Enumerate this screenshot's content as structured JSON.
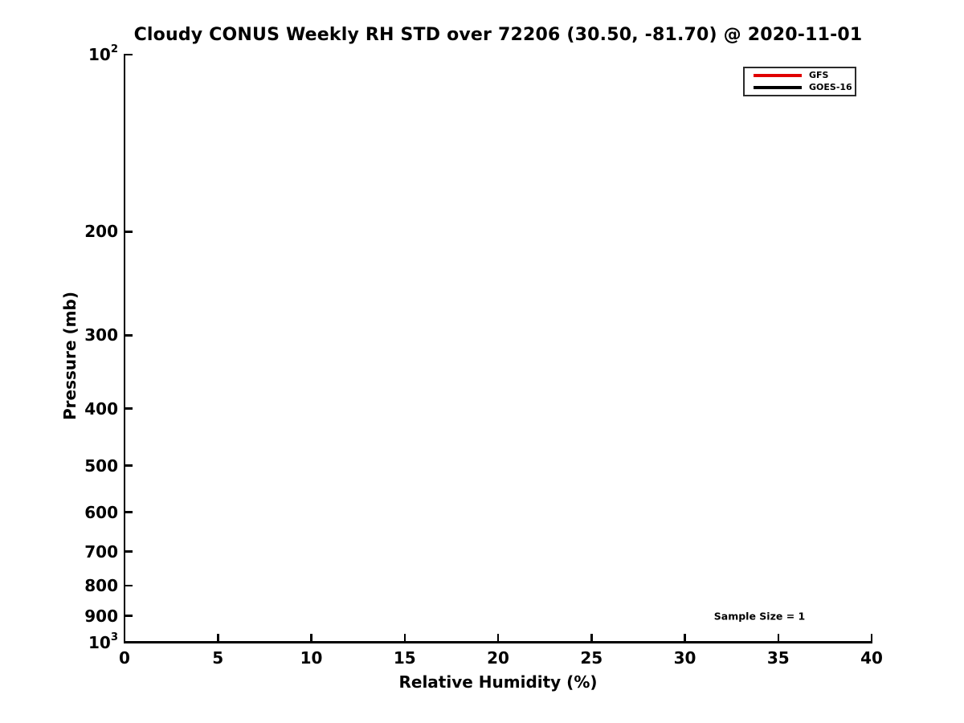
{
  "chart_data": {
    "type": "line",
    "title": "Cloudy CONUS Weekly RH STD over 72206 (30.50, -81.70) @ 2020-11-01",
    "xlabel": "Relative Humidity (%)",
    "ylabel": "Pressure (mb)",
    "xlim": [
      0,
      40
    ],
    "ylim": [
      100,
      1000
    ],
    "yscale": "log",
    "y_axis_direction": "increasing-downward",
    "grid": false,
    "x_ticks": [
      {
        "value": 0,
        "label": "0"
      },
      {
        "value": 5,
        "label": "5"
      },
      {
        "value": 10,
        "label": "10"
      },
      {
        "value": 15,
        "label": "15"
      },
      {
        "value": 20,
        "label": "20"
      },
      {
        "value": 25,
        "label": "25"
      },
      {
        "value": 30,
        "label": "30"
      },
      {
        "value": 35,
        "label": "35"
      },
      {
        "value": 40,
        "label": "40"
      }
    ],
    "y_ticks": [
      {
        "value": 100,
        "label": "10^2"
      },
      {
        "value": 200,
        "label": "200"
      },
      {
        "value": 300,
        "label": "300"
      },
      {
        "value": 400,
        "label": "400"
      },
      {
        "value": 500,
        "label": "500"
      },
      {
        "value": 600,
        "label": "600"
      },
      {
        "value": 700,
        "label": "700"
      },
      {
        "value": 800,
        "label": "800"
      },
      {
        "value": 900,
        "label": "900"
      },
      {
        "value": 1000,
        "label": "10^3"
      }
    ],
    "legend": {
      "position": "upper-right",
      "border_color": "#2b2b2b",
      "entries": [
        {
          "name": "GFS",
          "color": "#e00000"
        },
        {
          "name": "GOES-16",
          "color": "#000000"
        }
      ]
    },
    "series": [
      {
        "name": "GFS",
        "color": "#e00000",
        "points": []
      },
      {
        "name": "GOES-16",
        "color": "#000000",
        "points": []
      }
    ],
    "annotations": [
      {
        "text": "Sample Size = 1",
        "x": 34,
        "y": 900
      }
    ]
  }
}
